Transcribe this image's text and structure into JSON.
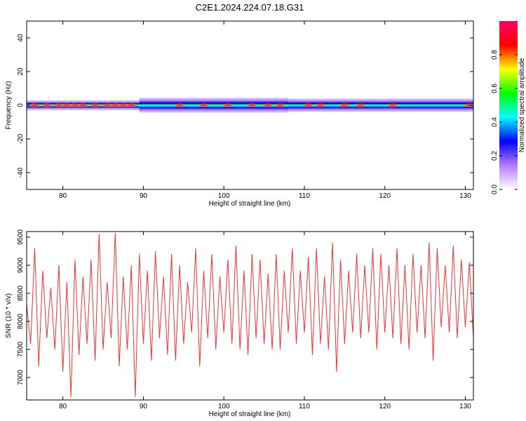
{
  "figure": {
    "title": "C2E1.2024.224.07.18.G31"
  },
  "chart_data": [
    {
      "type": "heatmap",
      "xlabel": "Height of straight line (km)",
      "ylabel": "Frequency (Hz)",
      "xlim": [
        75.5,
        131
      ],
      "ylim": [
        -50,
        50
      ],
      "xticks": [
        80,
        90,
        100,
        110,
        120,
        130
      ],
      "yticks": [
        -40,
        -20,
        0,
        20,
        40
      ],
      "colorbar": {
        "label": "Normalized spectral amplitude",
        "range": [
          0,
          1
        ],
        "ticks": [
          "0.0",
          "0.2",
          "0.4",
          "0.6",
          "0.8"
        ],
        "tick_values": [
          0,
          0.2,
          0.4,
          0.6,
          0.8
        ],
        "colors": [
          "#ffffff",
          "#b47cff",
          "#0000ff",
          "#00ffff",
          "#00ff00",
          "#ffff00",
          "#ff0000",
          "#ff0066"
        ]
      },
      "band_center_hz": 0,
      "segments": [
        {
          "x": [
            75.5,
            89.5
          ],
          "halfwidth_hz": 3,
          "peak": 0.95
        },
        {
          "x": [
            89.5,
            108.0
          ],
          "halfwidth_hz": 4.5,
          "peak": 0.8
        },
        {
          "x": [
            108.0,
            131
          ],
          "halfwidth_hz": 4,
          "peak": 0.75
        }
      ],
      "hot_spots_km": [
        76.5,
        78,
        79.5,
        80.5,
        81.5,
        82.5,
        84,
        85.5,
        86.5,
        87.5,
        88.5,
        94.5,
        97.5,
        100.5,
        103.5,
        105.5,
        107,
        110.5,
        112,
        115,
        117,
        121,
        130.5
      ],
      "grid": false
    },
    {
      "type": "line",
      "xlabel": "Height of straight line (km)",
      "ylabel": "SNR (10 * v/v)",
      "xlim": [
        75.5,
        131
      ],
      "ylim": [
        6600,
        9600
      ],
      "xticks": [
        80,
        90,
        100,
        110,
        120,
        130
      ],
      "yticks": [
        7000,
        7500,
        8000,
        8500,
        9000,
        9500
      ],
      "series": [
        {
          "color": "#ee3333",
          "x": [
            75.5,
            76.0,
            76.5,
            77.0,
            77.5,
            78.0,
            78.5,
            79.0,
            79.5,
            80.0,
            80.5,
            81.0,
            81.5,
            82.0,
            82.5,
            83.0,
            83.5,
            84.0,
            84.5,
            85.0,
            85.5,
            86.0,
            86.5,
            87.0,
            87.5,
            88.0,
            88.5,
            89.0,
            89.5,
            90.0,
            90.5,
            91.0,
            91.5,
            92.0,
            92.5,
            93.0,
            93.5,
            94.0,
            94.5,
            95.0,
            95.5,
            96.0,
            96.5,
            97.0,
            97.5,
            98.0,
            98.5,
            99.0,
            99.5,
            100.0,
            100.5,
            101.0,
            101.5,
            102.0,
            102.5,
            103.0,
            103.5,
            104.0,
            104.5,
            105.0,
            105.5,
            106.0,
            106.5,
            107.0,
            107.5,
            108.0,
            108.5,
            109.0,
            109.5,
            110.0,
            110.5,
            111.0,
            111.5,
            112.0,
            112.5,
            113.0,
            113.5,
            114.0,
            114.5,
            115.0,
            115.5,
            116.0,
            116.5,
            117.0,
            117.5,
            118.0,
            118.5,
            119.0,
            119.5,
            120.0,
            120.5,
            121.0,
            121.5,
            122.0,
            122.5,
            123.0,
            123.5,
            124.0,
            124.5,
            125.0,
            125.5,
            126.0,
            126.5,
            127.0,
            127.5,
            128.0,
            128.5,
            129.0,
            129.5,
            130.0,
            130.5,
            131.0
          ],
          "values": [
            8300,
            7600,
            9300,
            7200,
            8900,
            7700,
            8600,
            7500,
            9000,
            7100,
            8700,
            6650,
            9100,
            7400,
            8800,
            7600,
            9100,
            7300,
            9560,
            7500,
            8700,
            7700,
            9580,
            7200,
            8800,
            7500,
            9000,
            6650,
            9200,
            7600,
            8900,
            7300,
            9250,
            7700,
            8800,
            7400,
            9200,
            7300,
            9000,
            7600,
            8700,
            7800,
            9300,
            7200,
            8900,
            7700,
            9200,
            7500,
            8800,
            7800,
            9100,
            7600,
            9350,
            7500,
            8900,
            7400,
            9200,
            7700,
            9100,
            7600,
            8850,
            7500,
            9200,
            7500,
            8900,
            7800,
            9300,
            7600,
            8900,
            7800,
            9150,
            7400,
            9300,
            7600,
            8800,
            7500,
            9400,
            7100,
            9100,
            7600,
            8900,
            7800,
            9200,
            7700,
            9000,
            7800,
            9300,
            7500,
            9200,
            7800,
            9000,
            7700,
            9300,
            7600,
            9000,
            7500,
            9200,
            7800,
            9000,
            7700,
            9400,
            7300,
            9300,
            7900,
            9000,
            7800,
            9350,
            7700,
            9100,
            7900,
            9050,
            7700
          ]
        }
      ],
      "grid": false
    }
  ]
}
